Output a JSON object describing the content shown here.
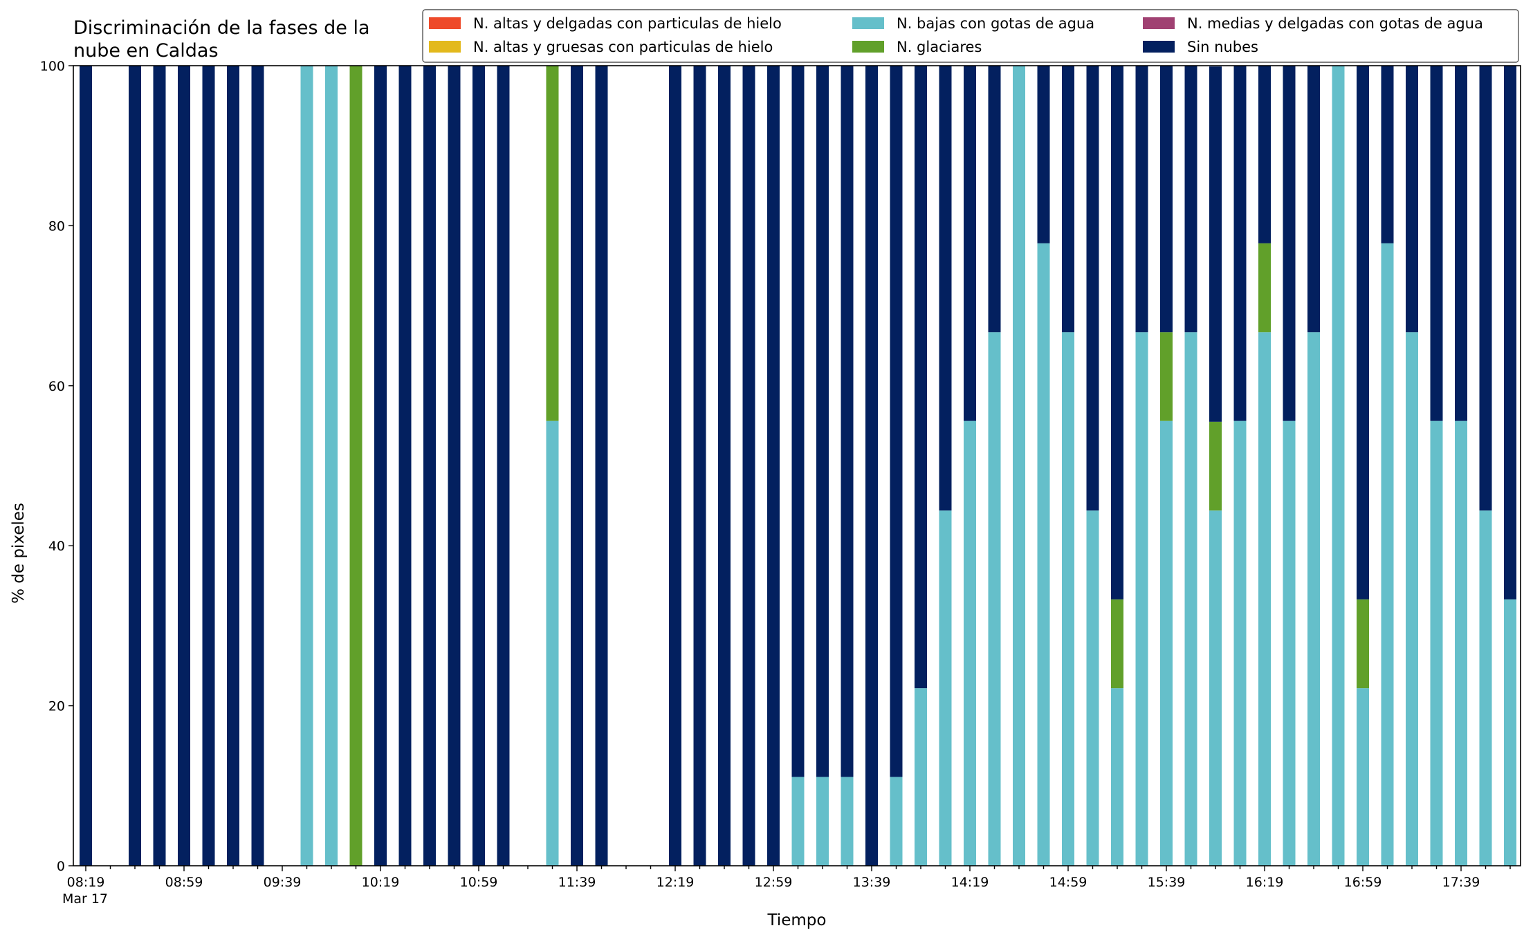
{
  "chart_data": {
    "type": "bar",
    "stacked": true,
    "title": "Discriminación de la fases de la\nnube en Caldas",
    "xlabel": "Tiempo",
    "ylabel": "% de pixeles",
    "ylim": [
      0,
      100
    ],
    "yticks": [
      0,
      20,
      40,
      60,
      80,
      100
    ],
    "grid": false,
    "legend_position": "top-right",
    "x_start": "08:19",
    "x_end": "18:09",
    "x_step_minutes": 10,
    "xtick_labels": [
      "08:19",
      "08:59",
      "09:39",
      "10:19",
      "10:59",
      "11:39",
      "12:19",
      "12:59",
      "13:39",
      "14:19",
      "14:59",
      "15:39",
      "16:19",
      "16:59",
      "17:39"
    ],
    "xtick_sublabel": "Mar 17",
    "categories": [
      "08:19",
      "08:29",
      "08:39",
      "08:49",
      "08:59",
      "09:09",
      "09:19",
      "09:29",
      "09:39",
      "09:49",
      "09:59",
      "10:09",
      "10:19",
      "10:29",
      "10:39",
      "10:49",
      "10:59",
      "11:09",
      "11:19",
      "11:29",
      "11:39",
      "11:49",
      "11:59",
      "12:09",
      "12:19",
      "12:29",
      "12:39",
      "12:49",
      "12:59",
      "13:09",
      "13:19",
      "13:29",
      "13:39",
      "13:49",
      "13:59",
      "14:09",
      "14:19",
      "14:29",
      "14:39",
      "14:49",
      "14:59",
      "15:09",
      "15:19",
      "15:29",
      "15:39",
      "15:49",
      "15:59",
      "16:09",
      "16:19",
      "16:29",
      "16:39",
      "16:49",
      "16:59",
      "17:09",
      "17:19",
      "17:29",
      "17:39",
      "17:49",
      "17:59",
      "18:09"
    ],
    "series": [
      {
        "name": "N. altas y delgadas con particulas de hielo",
        "color": "#ee4a2a",
        "values": [
          0,
          0,
          0,
          0,
          0,
          0,
          0,
          0,
          0,
          0,
          0,
          0,
          0,
          0,
          0,
          0,
          0,
          0,
          0,
          0,
          0,
          0,
          0,
          0,
          0,
          0,
          0,
          0,
          0,
          0,
          0,
          0,
          0,
          0,
          0,
          0,
          0,
          0,
          0,
          0,
          0,
          0,
          0,
          0,
          0,
          0,
          0,
          0,
          0,
          0,
          0,
          0,
          0,
          0,
          0,
          0,
          0,
          0,
          0,
          0
        ]
      },
      {
        "name": "N. altas y gruesas con particulas de hielo",
        "color": "#e3b91c",
        "values": [
          0,
          0,
          0,
          0,
          0,
          0,
          0,
          0,
          0,
          0,
          0,
          0,
          0,
          0,
          0,
          0,
          0,
          0,
          0,
          0,
          0,
          0,
          0,
          0,
          0,
          0,
          0,
          0,
          0,
          0,
          0,
          0,
          0,
          0,
          0,
          0,
          0,
          0,
          0,
          0,
          0,
          0,
          0,
          0,
          0,
          0,
          0,
          0,
          0,
          0,
          0,
          0,
          0,
          0,
          0,
          0,
          0,
          0,
          0,
          0
        ]
      },
      {
        "name": "N. bajas con gotas de agua",
        "color": "#65bfca",
        "values": [
          0,
          null,
          0,
          0,
          0,
          0,
          0,
          0,
          null,
          100,
          100,
          0,
          0,
          0,
          0,
          0,
          0,
          0,
          null,
          55.6,
          0,
          0,
          null,
          null,
          0,
          0,
          0,
          0,
          0,
          11.1,
          11.1,
          11.1,
          0,
          11.1,
          22.2,
          44.4,
          55.6,
          66.7,
          100,
          77.8,
          66.7,
          44.4,
          22.2,
          66.7,
          55.6,
          66.7,
          44.4,
          55.6,
          66.7,
          55.6,
          66.7,
          100,
          22.2,
          77.8,
          66.7,
          55.6,
          55.6,
          44.4,
          33.3,
          null
        ]
      },
      {
        "name": "N. glaciares",
        "color": "#61a02a",
        "values": [
          0,
          null,
          0,
          0,
          0,
          0,
          0,
          0,
          null,
          0,
          0,
          100,
          0,
          0,
          0,
          0,
          0,
          0,
          null,
          44.4,
          0,
          0,
          null,
          null,
          0,
          0,
          0,
          0,
          0,
          0,
          0,
          0,
          0,
          0,
          0,
          0,
          0,
          0,
          0,
          0,
          0,
          0,
          11.1,
          0,
          11.1,
          0,
          11.1,
          0,
          11.1,
          0,
          0,
          0,
          11.1,
          0,
          0,
          0,
          0,
          0,
          0,
          null
        ]
      },
      {
        "name": "N. medias y delgadas con gotas de agua",
        "color": "#a04172",
        "values": [
          0,
          0,
          0,
          0,
          0,
          0,
          0,
          0,
          0,
          0,
          0,
          0,
          0,
          0,
          0,
          0,
          0,
          0,
          0,
          0,
          0,
          0,
          0,
          0,
          0,
          0,
          0,
          0,
          0,
          0,
          0,
          0,
          0,
          0,
          0,
          0,
          0,
          0,
          0,
          0,
          0,
          0,
          0,
          0,
          0,
          0,
          0,
          0,
          0,
          0,
          0,
          0,
          0,
          0,
          0,
          0,
          0,
          0,
          0,
          0
        ]
      },
      {
        "name": "Sin nubes",
        "color": "#03205f",
        "values": [
          100,
          null,
          100,
          100,
          100,
          100,
          100,
          100,
          null,
          0,
          0,
          0,
          100,
          100,
          100,
          100,
          100,
          100,
          null,
          0,
          100,
          100,
          null,
          null,
          100,
          100,
          100,
          100,
          100,
          88.9,
          88.9,
          88.9,
          100,
          88.9,
          77.8,
          55.6,
          44.4,
          33.3,
          0,
          22.2,
          33.3,
          55.6,
          66.7,
          33.3,
          33.3,
          33.3,
          44.4,
          44.4,
          22.2,
          44.4,
          33.3,
          0,
          66.7,
          22.2,
          33.3,
          44.4,
          44.4,
          55.6,
          66.7,
          null
        ]
      }
    ]
  }
}
